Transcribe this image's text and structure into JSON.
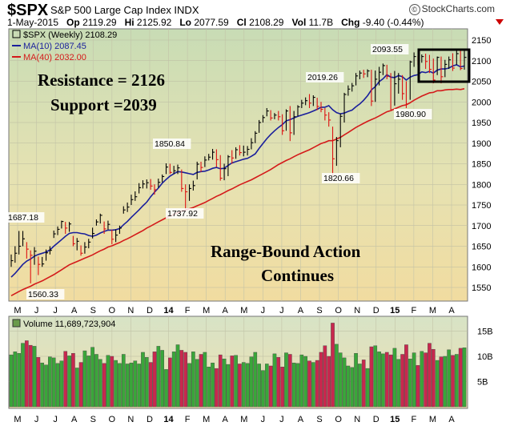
{
  "header": {
    "symbol": "$SPX",
    "subtitle": "S&P 500 Large Cap Index INDX",
    "date": "1-May-2015",
    "open_label": "Op",
    "open": "2119.29",
    "high_label": "Hi",
    "high": "2125.92",
    "low_label": "Lo",
    "low": "2077.59",
    "close_label": "Cl",
    "close": "2108.29",
    "vol_label": "Vol",
    "vol": "11.7B",
    "chg_label": "Chg",
    "chg": "-9.40 (-0.44%)",
    "brand": "StockCharts.com",
    "brand_mark": "©"
  },
  "legend": {
    "price": "$SPX (Weekly) 2108.29",
    "ma10": "MA(10) 2087.45",
    "ma40": "MA(40) 2032.00",
    "volume": "Volume 11,689,723,904"
  },
  "annotations": {
    "resistance": "Resistance = 2126",
    "support": "Support =2039",
    "range1": "Range-Bound Action",
    "range2": "Continues"
  },
  "colors": {
    "price": "#000000",
    "ma10": "#1a1f9c",
    "ma40": "#d41a1a",
    "vol_up": "#3aa63a",
    "vol_down": "#c8284e"
  },
  "chart_data": [
    {
      "type": "line",
      "y_ticks": [
        1550,
        1600,
        1650,
        1700,
        1750,
        1800,
        1850,
        1900,
        1950,
        2000,
        2050,
        2100,
        2150
      ],
      "x_ticks": [
        "M",
        "J",
        "J",
        "A",
        "S",
        "O",
        "N",
        "D",
        "14",
        "F",
        "M",
        "A",
        "M",
        "J",
        "J",
        "A",
        "S",
        "O",
        "N",
        "D",
        "15",
        "F",
        "M",
        "A"
      ],
      "price_labels": [
        "1687.18",
        "1560.33",
        "1850.84",
        "1737.92",
        "2019.26",
        "1820.66",
        "2093.55",
        "1980.90"
      ],
      "weekly_close": [
        1615,
        1633,
        1650,
        1668,
        1643,
        1628,
        1638,
        1606,
        1607,
        1634,
        1640,
        1680,
        1691,
        1710,
        1694,
        1704,
        1656,
        1662,
        1633,
        1648,
        1660,
        1681,
        1709,
        1725,
        1692,
        1703,
        1667,
        1677,
        1694,
        1738,
        1745,
        1763,
        1770,
        1792,
        1801,
        1804,
        1796,
        1787,
        1805,
        1819,
        1842,
        1829,
        1833,
        1840,
        1790,
        1782,
        1790,
        1797,
        1849,
        1841,
        1859,
        1866,
        1878,
        1860,
        1815,
        1838,
        1867,
        1864,
        1884,
        1877,
        1878,
        1885,
        1901,
        1924,
        1950,
        1962,
        1978,
        1961,
        1968,
        1964,
        1930,
        1978,
        1925,
        1964,
        1988,
        1997,
        2003,
        1997,
        2011,
        1989,
        1982,
        1968,
        1956,
        1862,
        1906,
        1965,
        2018,
        2031,
        2039,
        2063,
        2070,
        2068,
        2075,
        2002,
        2055,
        2072,
        2088,
        2062,
        1981,
        2044,
        2055,
        2020,
        1995,
        2097,
        2110,
        2104,
        2110,
        2098,
        2079,
        2053,
        2108,
        2061,
        2091,
        2102,
        2082,
        2117,
        2081,
        2108
      ],
      "weekly_high": [
        1630,
        1650,
        1687,
        1687,
        1660,
        1640,
        1648,
        1625,
        1624,
        1642,
        1650,
        1688,
        1698,
        1712,
        1709,
        1709,
        1675,
        1670,
        1652,
        1660,
        1668,
        1695,
        1715,
        1729,
        1710,
        1712,
        1690,
        1691,
        1700,
        1747,
        1756,
        1775,
        1783,
        1803,
        1810,
        1812,
        1813,
        1800,
        1814,
        1824,
        1851,
        1850,
        1845,
        1848,
        1836,
        1800,
        1800,
        1809,
        1855,
        1855,
        1868,
        1874,
        1886,
        1885,
        1871,
        1850,
        1871,
        1883,
        1890,
        1895,
        1894,
        1893,
        1912,
        1929,
        1956,
        1968,
        1985,
        1980,
        1973,
        1978,
        1970,
        1982,
        1990,
        1978,
        1992,
        2005,
        2011,
        2019,
        2016,
        2010,
        2000,
        1985,
        1975,
        1940,
        1915,
        1972,
        2022,
        2040,
        2046,
        2070,
        2076,
        2078,
        2079,
        2078,
        2076,
        2085,
        2093,
        2090,
        2070,
        2075,
        2070,
        2065,
        2050,
        2100,
        2120,
        2112,
        2115,
        2117,
        2114,
        2105,
        2110,
        2110,
        2102,
        2110,
        2118,
        2125,
        2126,
        2125
      ],
      "weekly_low": [
        1600,
        1610,
        1630,
        1650,
        1620,
        1560,
        1605,
        1580,
        1600,
        1615,
        1630,
        1670,
        1677,
        1693,
        1680,
        1685,
        1650,
        1640,
        1627,
        1632,
        1645,
        1669,
        1700,
        1705,
        1680,
        1690,
        1655,
        1660,
        1680,
        1729,
        1733,
        1750,
        1760,
        1778,
        1790,
        1790,
        1787,
        1775,
        1792,
        1805,
        1825,
        1825,
        1825,
        1825,
        1782,
        1738,
        1760,
        1785,
        1812,
        1830,
        1842,
        1858,
        1860,
        1842,
        1809,
        1810,
        1820,
        1850,
        1862,
        1870,
        1868,
        1870,
        1885,
        1900,
        1925,
        1950,
        1965,
        1955,
        1958,
        1955,
        1920,
        1930,
        1905,
        1920,
        1965,
        1985,
        1992,
        1985,
        1990,
        1980,
        1975,
        1955,
        1940,
        1821,
        1845,
        1890,
        1950,
        2015,
        2025,
        2040,
        2055,
        2058,
        2060,
        1990,
        2000,
        2040,
        2065,
        2055,
        1981,
        1991,
        2020,
        2005,
        1985,
        2005,
        2085,
        2090,
        2095,
        2080,
        2070,
        2045,
        2065,
        2045,
        2060,
        2080,
        2075,
        2090,
        2077,
        2078
      ],
      "ma10": [
        1575,
        1584,
        1595,
        1606,
        1614,
        1619,
        1626,
        1630,
        1633,
        1636,
        1641,
        1650,
        1658,
        1666,
        1674,
        1681,
        1683,
        1683,
        1681,
        1680,
        1676,
        1674,
        1677,
        1682,
        1686,
        1689,
        1689,
        1690,
        1693,
        1702,
        1710,
        1720,
        1729,
        1738,
        1748,
        1757,
        1770,
        1781,
        1791,
        1803,
        1812,
        1820,
        1826,
        1831,
        1830,
        1828,
        1826,
        1824,
        1829,
        1831,
        1832,
        1835,
        1839,
        1841,
        1838,
        1839,
        1846,
        1852,
        1855,
        1858,
        1861,
        1863,
        1868,
        1874,
        1887,
        1899,
        1911,
        1921,
        1930,
        1938,
        1945,
        1954,
        1957,
        1961,
        1965,
        1968,
        1971,
        1974,
        1978,
        1982,
        1987,
        1987,
        1991,
        1981,
        1974,
        1971,
        1973,
        1977,
        1980,
        1988,
        1995,
        2004,
        2015,
        2029,
        2037,
        2049,
        2056,
        2066,
        2060,
        2059,
        2064,
        2061,
        2053,
        2060,
        2064,
        2066,
        2073,
        2071,
        2074,
        2070,
        2077,
        2080,
        2080,
        2082,
        2087,
        2090,
        2085,
        2087
      ],
      "ma40": [
        1530,
        1535,
        1540,
        1545,
        1549,
        1553,
        1558,
        1562,
        1566,
        1571,
        1576,
        1581,
        1587,
        1593,
        1599,
        1605,
        1609,
        1613,
        1617,
        1621,
        1625,
        1629,
        1634,
        1639,
        1643,
        1648,
        1651,
        1655,
        1659,
        1664,
        1668,
        1673,
        1678,
        1683,
        1688,
        1694,
        1699,
        1704,
        1709,
        1714,
        1719,
        1723,
        1727,
        1731,
        1735,
        1738,
        1741,
        1744,
        1748,
        1752,
        1756,
        1761,
        1766,
        1771,
        1775,
        1780,
        1785,
        1789,
        1794,
        1799,
        1803,
        1807,
        1811,
        1816,
        1821,
        1826,
        1831,
        1836,
        1842,
        1848,
        1853,
        1858,
        1862,
        1867,
        1872,
        1876,
        1880,
        1884,
        1889,
        1894,
        1899,
        1902,
        1906,
        1906,
        1910,
        1914,
        1920,
        1926,
        1932,
        1938,
        1943,
        1948,
        1953,
        1957,
        1961,
        1966,
        1971,
        1976,
        1979,
        1983,
        1987,
        1991,
        1993,
        1998,
        2004,
        2009,
        2014,
        2018,
        2022,
        2023,
        2027,
        2027,
        2029,
        2030,
        2030,
        2031,
        2030,
        2032
      ]
    },
    {
      "type": "bar",
      "name": "Volume",
      "y_ticks": [
        "5B",
        "10B",
        "15B"
      ],
      "x_ticks": [
        "M",
        "J",
        "J",
        "A",
        "S",
        "O",
        "N",
        "D",
        "14",
        "F",
        "M",
        "A",
        "M",
        "J",
        "J",
        "A",
        "S",
        "O",
        "N",
        "D",
        "15",
        "F",
        "M",
        "A"
      ],
      "values_billions": [
        10.3,
        10.9,
        10.6,
        12.6,
        13.1,
        12.2,
        12.0,
        9.8,
        8.7,
        8.3,
        9.9,
        9.7,
        8.6,
        9.1,
        11.0,
        10.1,
        10.6,
        7.7,
        8.8,
        11.1,
        10.1,
        11.8,
        10.4,
        9.4,
        8.6,
        10.2,
        10.0,
        9.2,
        8.6,
        10.4,
        8.5,
        8.7,
        9.1,
        8.5,
        10.8,
        9.8,
        8.8,
        10.9,
        12.0,
        11.2,
        7.4,
        9.7,
        10.9,
        12.3,
        11.2,
        10.8,
        8.6,
        10.9,
        9.4,
        10.4,
        10.8,
        7.9,
        8.7,
        7.6,
        10.3,
        9.5,
        8.4,
        10.1,
        10.2,
        8.5,
        8.8,
        8.6,
        9.9,
        10.8,
        8.5,
        7.2,
        8.5,
        8.1,
        10.5,
        9.8,
        7.9,
        10.7,
        10.4,
        8.7,
        8.6,
        10.3,
        10.0,
        9.1,
        8.8,
        9.2,
        10.8,
        12.1,
        10.0,
        16.6,
        12.4,
        10.7,
        9.7,
        8.1,
        7.8,
        10.6,
        8.5,
        9.3,
        7.6,
        11.9,
        12.1,
        10.9,
        10.5,
        10.8,
        10.3,
        11.6,
        9.4,
        10.4,
        12.3,
        9.5,
        10.7,
        8.2,
        11.0,
        10.7,
        12.6,
        11.4,
        9.2,
        9.9,
        10.0,
        11.3,
        10.2,
        10.4,
        11.6,
        11.7
      ]
    }
  ]
}
